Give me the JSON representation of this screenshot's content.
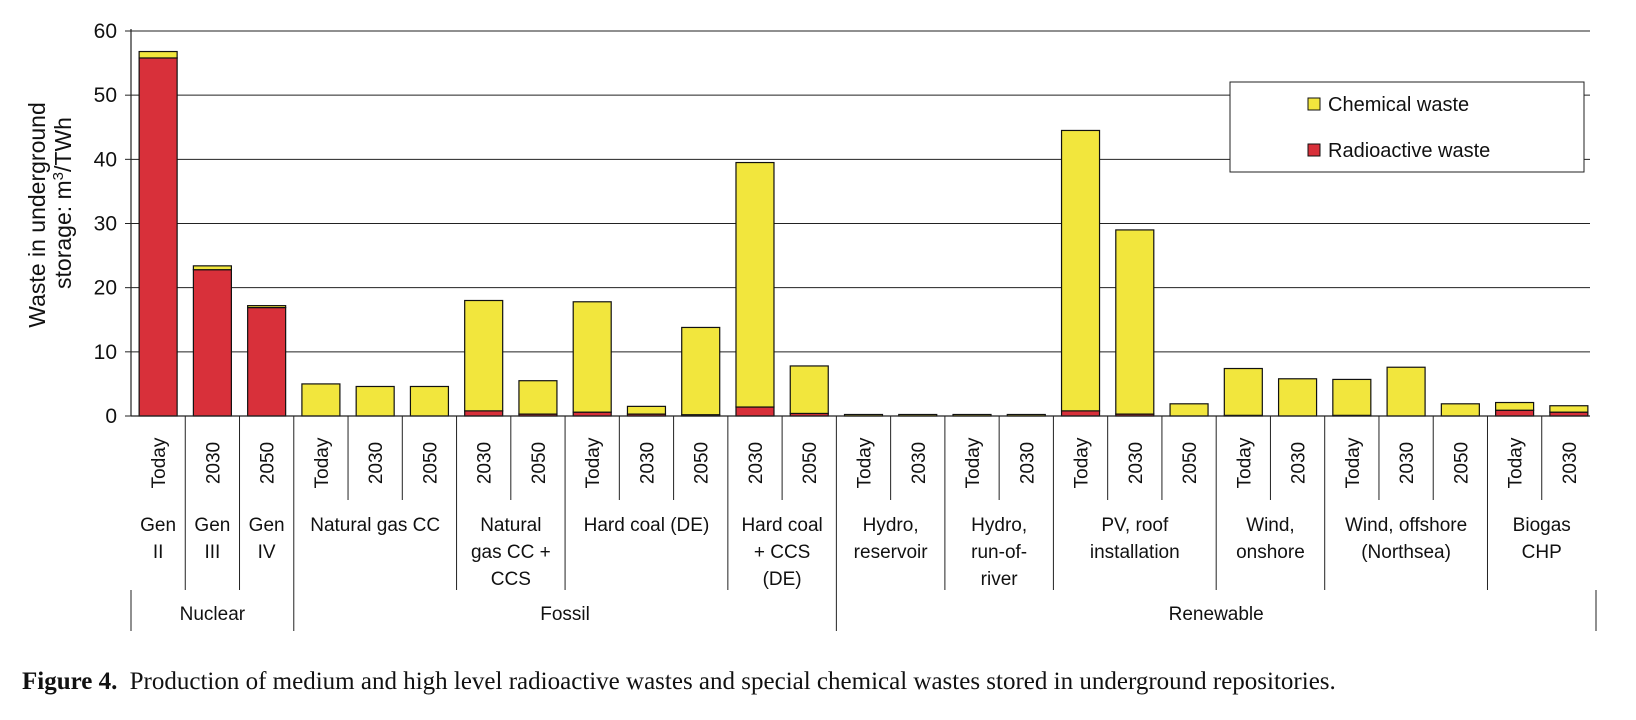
{
  "chart_data": {
    "type": "bar",
    "stacked": true,
    "ylabel_line1": "Waste in underground",
    "ylabel_line2_prefix": "storage: m",
    "ylabel_line2_sup": "3",
    "ylabel_line2_suffix": "/TWh",
    "ylim": [
      0,
      60
    ],
    "yticks": [
      "0",
      "10",
      "20",
      "30",
      "40",
      "50",
      "60"
    ],
    "grid": true,
    "legend_position": "top-right",
    "series": [
      {
        "name": "Chemical waste",
        "color": "#f2e63d"
      },
      {
        "name": "Radioactive waste",
        "color": "#d8303a"
      }
    ],
    "bars": [
      {
        "year": "Today",
        "radioactive": 55.8,
        "chemical": 1.0
      },
      {
        "year": "2030",
        "radioactive": 22.8,
        "chemical": 0.6
      },
      {
        "year": "2050",
        "radioactive": 16.9,
        "chemical": 0.3
      },
      {
        "year": "Today",
        "radioactive": 0.0,
        "chemical": 5.0
      },
      {
        "year": "2030",
        "radioactive": 0.0,
        "chemical": 4.6
      },
      {
        "year": "2050",
        "radioactive": 0.0,
        "chemical": 4.6
      },
      {
        "year": "2030",
        "radioactive": 0.8,
        "chemical": 17.2
      },
      {
        "year": "2050",
        "radioactive": 0.3,
        "chemical": 5.2
      },
      {
        "year": "Today",
        "radioactive": 0.6,
        "chemical": 17.2
      },
      {
        "year": "2030",
        "radioactive": 0.3,
        "chemical": 1.2
      },
      {
        "year": "2050",
        "radioactive": 0.2,
        "chemical": 13.6
      },
      {
        "year": "2030",
        "radioactive": 1.4,
        "chemical": 38.1
      },
      {
        "year": "2050",
        "radioactive": 0.4,
        "chemical": 7.4
      },
      {
        "year": "Today",
        "radioactive": 0.0,
        "chemical": 0.1
      },
      {
        "year": "2030",
        "radioactive": 0.0,
        "chemical": 0.1
      },
      {
        "year": "Today",
        "radioactive": 0.0,
        "chemical": 0.1
      },
      {
        "year": "2030",
        "radioactive": 0.0,
        "chemical": 0.1
      },
      {
        "year": "Today",
        "radioactive": 0.8,
        "chemical": 43.7
      },
      {
        "year": "2030",
        "radioactive": 0.3,
        "chemical": 28.7
      },
      {
        "year": "2050",
        "radioactive": 0.0,
        "chemical": 1.9
      },
      {
        "year": "Today",
        "radioactive": 0.1,
        "chemical": 7.3
      },
      {
        "year": "2030",
        "radioactive": 0.0,
        "chemical": 5.8
      },
      {
        "year": "Today",
        "radioactive": 0.1,
        "chemical": 5.6
      },
      {
        "year": "2030",
        "radioactive": 0.0,
        "chemical": 7.6
      },
      {
        "year": "2050",
        "radioactive": 0.0,
        "chemical": 1.9
      },
      {
        "year": "Today",
        "radioactive": 0.9,
        "chemical": 1.2
      },
      {
        "year": "2030",
        "radioactive": 0.6,
        "chemical": 1.0
      }
    ],
    "technologies": [
      {
        "lines": [
          "Gen",
          "II"
        ],
        "start": 0,
        "end": 0
      },
      {
        "lines": [
          "Gen",
          "III"
        ],
        "start": 1,
        "end": 1
      },
      {
        "lines": [
          "Gen",
          "IV"
        ],
        "start": 2,
        "end": 2
      },
      {
        "lines": [
          "Natural gas CC"
        ],
        "start": 3,
        "end": 5
      },
      {
        "lines": [
          "Natural",
          "gas CC +",
          "CCS"
        ],
        "start": 6,
        "end": 7
      },
      {
        "lines": [
          "Hard coal (DE)"
        ],
        "start": 8,
        "end": 10
      },
      {
        "lines": [
          "Hard coal",
          "+ CCS",
          "(DE)"
        ],
        "start": 11,
        "end": 12
      },
      {
        "lines": [
          "Hydro,",
          "reservoir"
        ],
        "start": 13,
        "end": 14
      },
      {
        "lines": [
          "Hydro,",
          "run-of-",
          "river"
        ],
        "start": 15,
        "end": 16
      },
      {
        "lines": [
          "PV, roof",
          "installation"
        ],
        "start": 17,
        "end": 19
      },
      {
        "lines": [
          "Wind,",
          "onshore"
        ],
        "start": 20,
        "end": 21
      },
      {
        "lines": [
          "Wind, offshore",
          "(Northsea)"
        ],
        "start": 22,
        "end": 24
      },
      {
        "lines": [
          "Biogas",
          "CHP"
        ],
        "start": 25,
        "end": 26
      }
    ],
    "groups": [
      {
        "label": "Nuclear",
        "start": 0,
        "end": 2
      },
      {
        "label": "Fossil",
        "start": 3,
        "end": 12
      },
      {
        "label": "Renewable",
        "start": 13,
        "end": 26
      }
    ]
  },
  "caption": {
    "figure_number": "Figure 4.",
    "text": "Production of medium and high level radioactive wastes and special chemical wastes stored in underground repositories."
  }
}
